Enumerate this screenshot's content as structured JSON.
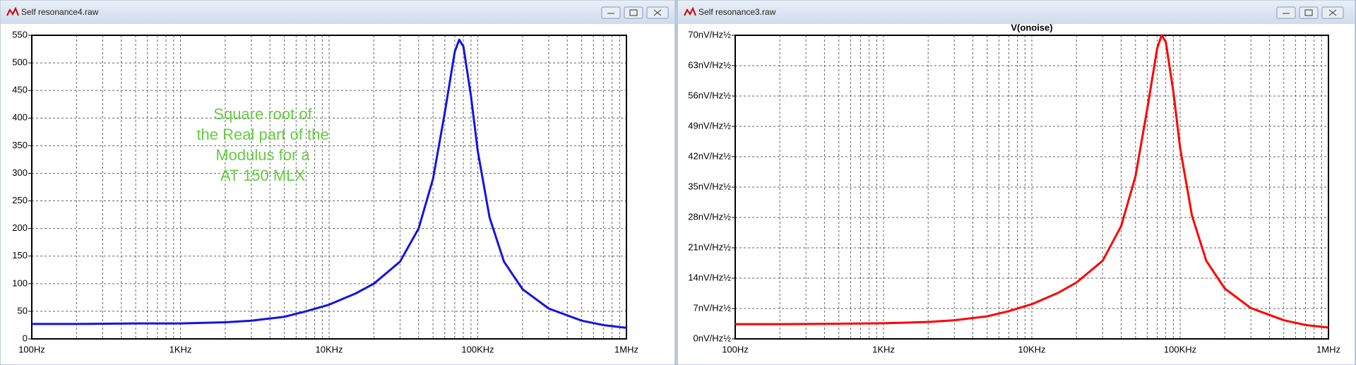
{
  "windows": [
    {
      "title": "Self resonance4.raw"
    },
    {
      "title": "Self resonance3.raw"
    }
  ],
  "chart_data": [
    {
      "type": "line",
      "xscale": "log",
      "grid": true,
      "annotation": [
        "Square root of",
        "the Real part of the",
        "Modulus for a",
        "AT 150 MLX"
      ],
      "x": [
        100,
        200,
        500,
        1000,
        2000,
        3000,
        5000,
        7000,
        10000,
        15000,
        20000,
        30000,
        40000,
        50000,
        60000,
        70000,
        75000,
        80000,
        90000,
        100000,
        120000,
        150000,
        200000,
        300000,
        500000,
        700000,
        1000000
      ],
      "series": [
        {
          "color": "#1414e0",
          "values": [
            27,
            27,
            28,
            28,
            30,
            33,
            40,
            50,
            62,
            82,
            100,
            140,
            200,
            290,
            410,
            520,
            542,
            530,
            440,
            340,
            220,
            140,
            90,
            55,
            33,
            25,
            20
          ]
        }
      ],
      "xlim": [
        100,
        1000000
      ],
      "xticks": [
        {
          "value": 100,
          "label": "100Hz"
        },
        {
          "value": 1000,
          "label": "1KHz"
        },
        {
          "value": 10000,
          "label": "10KHz"
        },
        {
          "value": 100000,
          "label": "100KHz"
        },
        {
          "value": 1000000,
          "label": "1MHz"
        }
      ],
      "xminorticks": [
        200,
        300,
        400,
        500,
        600,
        700,
        800,
        900,
        2000,
        3000,
        4000,
        5000,
        6000,
        7000,
        8000,
        9000,
        20000,
        30000,
        40000,
        50000,
        60000,
        70000,
        80000,
        90000,
        200000,
        300000,
        400000,
        500000,
        600000,
        700000,
        800000,
        900000
      ],
      "ylim": [
        0,
        550
      ],
      "yticks": [
        0,
        50,
        100,
        150,
        200,
        250,
        300,
        350,
        400,
        450,
        500,
        550
      ]
    },
    {
      "type": "line",
      "xscale": "log",
      "grid": true,
      "x": [
        100,
        200,
        500,
        1000,
        2000,
        3000,
        5000,
        7000,
        10000,
        15000,
        20000,
        30000,
        40000,
        50000,
        60000,
        70000,
        75000,
        80000,
        90000,
        100000,
        120000,
        150000,
        200000,
        300000,
        500000,
        700000,
        1000000
      ],
      "series": [
        {
          "name": "V(onoise)",
          "color": "#ff0000",
          "values": [
            3.4,
            3.4,
            3.5,
            3.6,
            3.9,
            4.3,
            5.2,
            6.4,
            8,
            10.6,
            13,
            18,
            26,
            37.5,
            53,
            67,
            70,
            68.5,
            57,
            44,
            28.5,
            18,
            11.6,
            7.1,
            4.3,
            3.2,
            2.6
          ]
        }
      ],
      "xlim": [
        100,
        1000000
      ],
      "xticks": [
        {
          "value": 100,
          "label": "100Hz"
        },
        {
          "value": 1000,
          "label": "1KHz"
        },
        {
          "value": 10000,
          "label": "10KHz"
        },
        {
          "value": 100000,
          "label": "100KHz"
        },
        {
          "value": 1000000,
          "label": "1MHz"
        }
      ],
      "xminorticks": [
        200,
        300,
        400,
        500,
        600,
        700,
        800,
        900,
        2000,
        3000,
        4000,
        5000,
        6000,
        7000,
        8000,
        9000,
        20000,
        30000,
        40000,
        50000,
        60000,
        70000,
        80000,
        90000,
        200000,
        300000,
        400000,
        500000,
        600000,
        700000,
        800000,
        900000
      ],
      "ylim": [
        0,
        70
      ],
      "yticks": [
        {
          "value": 0,
          "label": "0nV/Hz½"
        },
        {
          "value": 7,
          "label": "7nV/Hz½"
        },
        {
          "value": 14,
          "label": "14nV/Hz½"
        },
        {
          "value": 21,
          "label": "21nV/Hz½"
        },
        {
          "value": 28,
          "label": "28nV/Hz½"
        },
        {
          "value": 35,
          "label": "35nV/Hz½"
        },
        {
          "value": 42,
          "label": "42nV/Hz½"
        },
        {
          "value": 49,
          "label": "49nV/Hz½"
        },
        {
          "value": 56,
          "label": "56nV/Hz½"
        },
        {
          "value": 63,
          "label": "63nV/Hz½"
        },
        {
          "value": 70,
          "label": "70nV/Hz½"
        }
      ]
    }
  ]
}
